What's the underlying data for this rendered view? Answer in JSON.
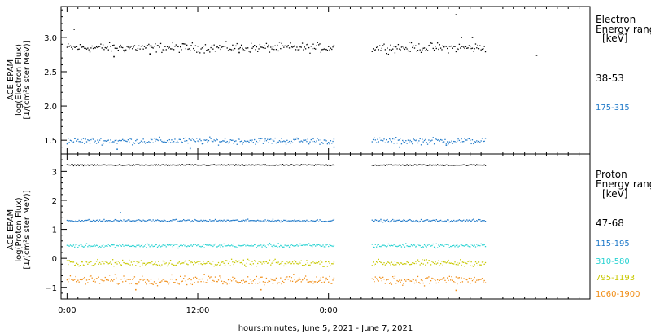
{
  "chart_data": [
    {
      "type": "scatter",
      "panel": "electron",
      "ylabel": [
        "ACE EPAM",
        "log(Electron Flux)",
        "[1/(cm²s ster MeV)]"
      ],
      "ylim": [
        1.3,
        3.45
      ],
      "yticks": [
        1.5,
        2.0,
        2.5,
        3.0
      ],
      "ytick_labels": [
        "1.5",
        "2.0",
        "2.5",
        "3.0"
      ],
      "legend_title": [
        "Electron",
        "Energy ranges",
        "[keV]"
      ],
      "series": [
        {
          "name": "38-53",
          "color": "#000000",
          "base": 2.85,
          "spread": 0.05,
          "outliers": [
            [
              0.65,
              3.12
            ],
            [
              4.3,
              2.72
            ],
            [
              7.6,
              2.76
            ],
            [
              15.8,
              2.78
            ],
            [
              35.7,
              3.33
            ],
            [
              36.2,
              3.0
            ],
            [
              37.2,
              3.0
            ],
            [
              43.1,
              2.74
            ]
          ]
        },
        {
          "name": "175-315",
          "color": "#1e78c8",
          "base": 1.49,
          "spread": 0.035,
          "outliers": [
            [
              4.6,
              1.37
            ],
            [
              11.3,
              1.38
            ],
            [
              24.5,
              1.4
            ],
            [
              30.5,
              1.4
            ],
            [
              34.8,
              1.43
            ]
          ]
        }
      ]
    },
    {
      "type": "scatter",
      "panel": "proton",
      "ylabel": [
        "ACE EPAM",
        "log(Proton Flux)",
        "[1/(cm²s ster MeV)]"
      ],
      "ylim": [
        -1.4,
        3.6
      ],
      "yticks": [
        -1,
        0,
        1,
        2,
        3
      ],
      "ytick_labels": [
        "−1",
        "0",
        "1",
        "2",
        "3"
      ],
      "legend_title": [
        "Proton",
        "Energy ranges",
        "[keV]"
      ],
      "series": [
        {
          "name": "47-68",
          "color": "#000000",
          "base": 3.22,
          "spread": 0.015,
          "outliers": []
        },
        {
          "name": "115-195",
          "color": "#1e78c8",
          "base": 1.3,
          "spread": 0.03,
          "outliers": [
            [
              4.9,
              1.58
            ]
          ]
        },
        {
          "name": "310-580",
          "color": "#28d2d2",
          "base": 0.44,
          "spread": 0.05,
          "outliers": []
        },
        {
          "name": "795-1193",
          "color": "#c8c800",
          "base": -0.16,
          "spread": 0.08,
          "outliers": []
        },
        {
          "name": "1060-1900",
          "color": "#f08c14",
          "base": -0.75,
          "spread": 0.12,
          "outliers": [
            [
              6.3,
              -1.08
            ],
            [
              17.8,
              -1.08
            ],
            [
              35.7,
              -1.1
            ]
          ]
        }
      ]
    }
  ],
  "x_axis": {
    "label": "hours:minutes, June  5, 2021 - June  7, 2021",
    "range_hours": [
      -0.55,
      48
    ],
    "major_ticks": [
      0,
      12,
      24
    ],
    "major_tick_labels": [
      "0:00",
      "12:00",
      "0:00"
    ],
    "minor_tick_step_hours": 1,
    "data_span_hours": [
      0,
      38.5
    ],
    "data_gap_hours": [
      24.6,
      28.0
    ]
  }
}
